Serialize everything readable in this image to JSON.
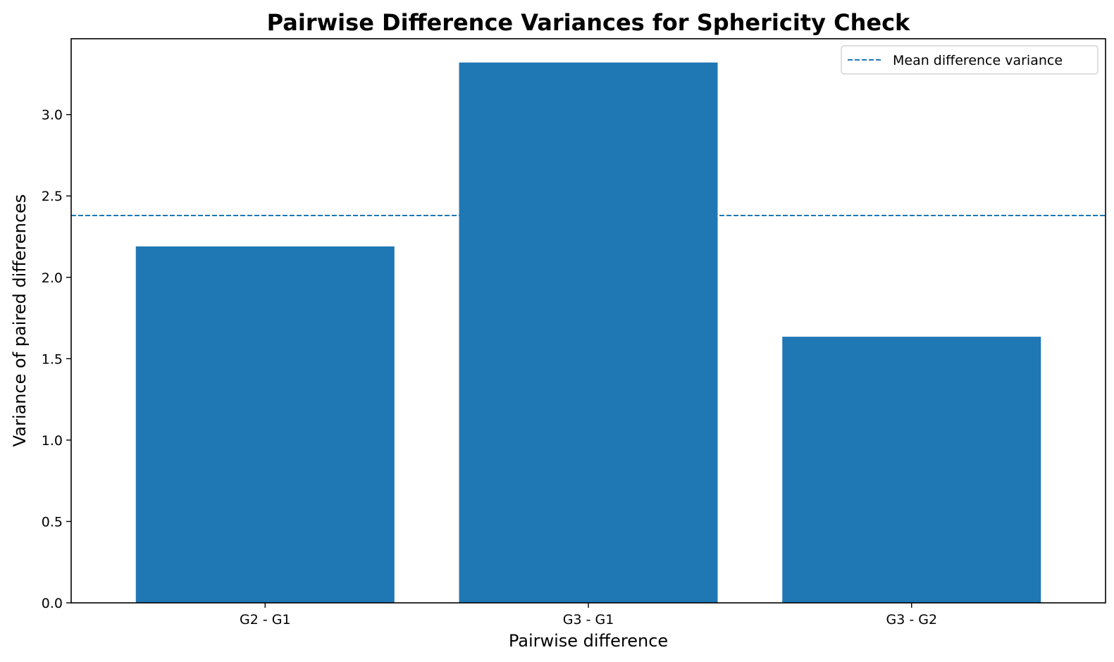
{
  "chart_data": {
    "type": "bar",
    "title": "Pairwise Difference Variances for Sphericity Check",
    "xlabel": "Pairwise difference",
    "ylabel": "Variance of paired differences",
    "categories": [
      "G2 - G1",
      "G3 - G1",
      "G3 - G2"
    ],
    "values": [
      2.19,
      3.32,
      1.635
    ],
    "ylim": [
      0,
      3.466
    ],
    "yticks": [
      0.0,
      0.5,
      1.0,
      1.5,
      2.0,
      2.5,
      3.0
    ],
    "ytick_labels": [
      "0.0",
      "0.5",
      "1.0",
      "1.5",
      "2.0",
      "2.5",
      "3.0"
    ],
    "reference_line": {
      "name": "Mean difference variance",
      "value": 2.38,
      "style": "dashed"
    },
    "legend": {
      "placement": "top-right",
      "entries": [
        "Mean difference variance"
      ]
    },
    "grid": false,
    "colors": {
      "bar": "#1f77b4",
      "reference_line": "#1f77b4"
    }
  }
}
